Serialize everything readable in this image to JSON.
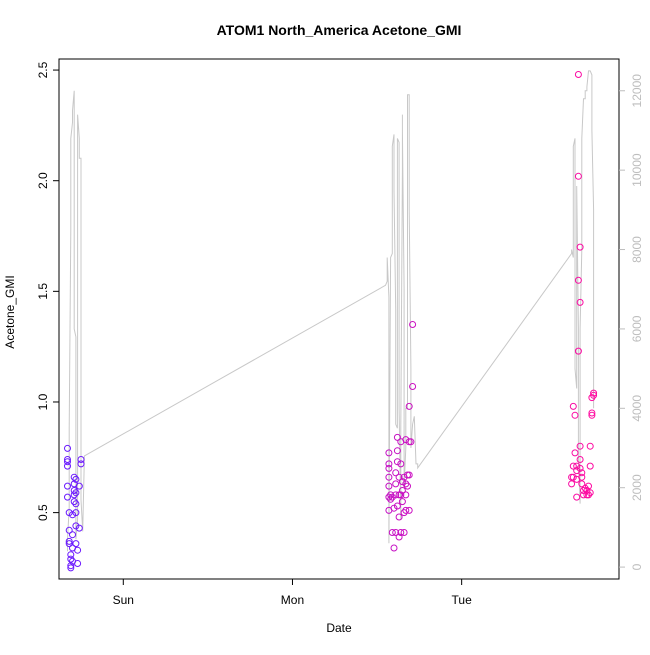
{
  "chart_data": {
    "type": "scatter",
    "title": "ATOM1 North_America Acetone_GMI",
    "xlabel": "Date",
    "ylabel": "Acetone_GMI",
    "ylim": [
      0.2,
      2.55
    ],
    "y2lim": [
      -300,
      12800
    ],
    "y_ticks": [
      "0.5",
      "1.0",
      "1.5",
      "2.0",
      "2.5"
    ],
    "y2_ticks": [
      "0",
      "2000",
      "4000",
      "6000",
      "8000",
      "10000",
      "12000"
    ],
    "x_ticks": [
      "Sun",
      "Mon",
      "Tue"
    ],
    "xlim": [
      -0.38,
      2.93
    ],
    "grid": false,
    "legend": "none",
    "colors": {
      "altitude_line": "#c8c8c8",
      "points_start": "#6a1aff",
      "points_end": "#ff0aa0",
      "right_axis": "#bdbdbd",
      "axes": "#000000"
    },
    "series": [
      {
        "role": "acetone_points",
        "points": [
          [
            -0.33,
            0.79
          ],
          [
            -0.33,
            0.74
          ],
          [
            -0.33,
            0.73
          ],
          [
            -0.33,
            0.71
          ],
          [
            -0.33,
            0.62
          ],
          [
            -0.33,
            0.57
          ],
          [
            -0.32,
            0.5
          ],
          [
            -0.32,
            0.42
          ],
          [
            -0.32,
            0.37
          ],
          [
            -0.32,
            0.36
          ],
          [
            -0.31,
            0.31
          ],
          [
            -0.31,
            0.29
          ],
          [
            -0.31,
            0.26
          ],
          [
            -0.31,
            0.25
          ],
          [
            -0.3,
            0.49
          ],
          [
            -0.3,
            0.4
          ],
          [
            -0.3,
            0.34
          ],
          [
            -0.3,
            0.28
          ],
          [
            -0.29,
            0.66
          ],
          [
            -0.29,
            0.63
          ],
          [
            -0.29,
            0.6
          ],
          [
            -0.29,
            0.58
          ],
          [
            -0.29,
            0.55
          ],
          [
            -0.28,
            0.65
          ],
          [
            -0.28,
            0.59
          ],
          [
            -0.28,
            0.54
          ],
          [
            -0.28,
            0.5
          ],
          [
            -0.28,
            0.44
          ],
          [
            -0.28,
            0.36
          ],
          [
            -0.27,
            0.27
          ],
          [
            -0.27,
            0.33
          ],
          [
            -0.26,
            0.43
          ],
          [
            -0.26,
            0.62
          ],
          [
            -0.25,
            0.74
          ],
          [
            -0.25,
            0.72
          ],
          [
            1.57,
            0.77
          ],
          [
            1.57,
            0.72
          ],
          [
            1.57,
            0.7
          ],
          [
            1.57,
            0.66
          ],
          [
            1.57,
            0.62
          ],
          [
            1.57,
            0.57
          ],
          [
            1.57,
            0.51
          ],
          [
            1.58,
            0.56
          ],
          [
            1.58,
            0.58
          ],
          [
            1.59,
            0.57
          ],
          [
            1.59,
            0.41
          ],
          [
            1.6,
            0.34
          ],
          [
            1.6,
            0.52
          ],
          [
            1.61,
            0.68
          ],
          [
            1.61,
            0.63
          ],
          [
            1.61,
            0.58
          ],
          [
            1.61,
            0.41
          ],
          [
            1.62,
            0.84
          ],
          [
            1.62,
            0.78
          ],
          [
            1.62,
            0.73
          ],
          [
            1.62,
            0.53
          ],
          [
            1.63,
            0.39
          ],
          [
            1.63,
            0.48
          ],
          [
            1.63,
            0.58
          ],
          [
            1.63,
            0.66
          ],
          [
            1.64,
            0.82
          ],
          [
            1.64,
            0.72
          ],
          [
            1.64,
            0.58
          ],
          [
            1.64,
            0.41
          ],
          [
            1.65,
            0.6
          ],
          [
            1.65,
            0.64
          ],
          [
            1.65,
            0.55
          ],
          [
            1.66,
            0.5
          ],
          [
            1.66,
            0.41
          ],
          [
            1.66,
            0.66
          ],
          [
            1.67,
            0.83
          ],
          [
            1.67,
            0.63
          ],
          [
            1.67,
            0.58
          ],
          [
            1.67,
            0.51
          ],
          [
            1.68,
            0.67
          ],
          [
            1.68,
            0.62
          ],
          [
            1.69,
            0.82
          ],
          [
            1.69,
            0.51
          ],
          [
            1.69,
            0.67
          ],
          [
            1.69,
            0.98
          ],
          [
            1.7,
            0.82
          ],
          [
            1.71,
            1.07
          ],
          [
            1.71,
            1.35
          ],
          [
            2.65,
            0.66
          ],
          [
            2.65,
            0.63
          ],
          [
            2.66,
            0.98
          ],
          [
            2.66,
            0.66
          ],
          [
            2.66,
            0.71
          ],
          [
            2.67,
            0.94
          ],
          [
            2.67,
            0.77
          ],
          [
            2.68,
            0.71
          ],
          [
            2.68,
            0.69
          ],
          [
            2.68,
            0.65
          ],
          [
            2.68,
            0.57
          ],
          [
            2.69,
            2.48
          ],
          [
            2.69,
            2.02
          ],
          [
            2.69,
            1.55
          ],
          [
            2.69,
            1.23
          ],
          [
            2.7,
            1.7
          ],
          [
            2.7,
            1.45
          ],
          [
            2.7,
            0.8
          ],
          [
            2.7,
            0.74
          ],
          [
            2.7,
            0.7
          ],
          [
            2.71,
            0.68
          ],
          [
            2.71,
            0.66
          ],
          [
            2.71,
            0.63
          ],
          [
            2.72,
            0.6
          ],
          [
            2.72,
            0.58
          ],
          [
            2.73,
            0.61
          ],
          [
            2.74,
            0.6
          ],
          [
            2.74,
            0.58
          ],
          [
            2.75,
            0.62
          ],
          [
            2.75,
            0.58
          ],
          [
            2.76,
            0.59
          ],
          [
            2.76,
            0.8
          ],
          [
            2.76,
            0.71
          ],
          [
            2.77,
            0.95
          ],
          [
            2.77,
            0.94
          ],
          [
            2.77,
            1.02
          ],
          [
            2.78,
            1.03
          ],
          [
            2.78,
            1.04
          ]
        ]
      },
      {
        "role": "altitude_line_right_axis",
        "points": [
          [
            -0.33,
            400
          ],
          [
            -0.33,
            700
          ],
          [
            -0.32,
            1500
          ],
          [
            -0.32,
            3500
          ],
          [
            -0.31,
            8500
          ],
          [
            -0.31,
            10800
          ],
          [
            -0.3,
            11200
          ],
          [
            -0.3,
            11500
          ],
          [
            -0.29,
            12000
          ],
          [
            -0.29,
            11000
          ],
          [
            -0.29,
            9000
          ],
          [
            -0.29,
            6000
          ],
          [
            -0.28,
            5800
          ],
          [
            -0.28,
            2000
          ],
          [
            -0.28,
            700
          ],
          [
            -0.27,
            1200
          ],
          [
            -0.27,
            6000
          ],
          [
            -0.27,
            10800
          ],
          [
            -0.27,
            11400
          ],
          [
            -0.26,
            10800
          ],
          [
            -0.26,
            10300
          ],
          [
            -0.25,
            10300
          ],
          [
            -0.25,
            7000
          ],
          [
            -0.25,
            1700
          ],
          [
            -0.24,
            900
          ],
          [
            -0.23,
            2800
          ],
          [
            1.55,
            7100
          ],
          [
            1.56,
            7200
          ],
          [
            1.56,
            7800
          ],
          [
            1.57,
            6800
          ],
          [
            1.57,
            600
          ],
          [
            1.58,
            7800
          ],
          [
            1.58,
            7800
          ],
          [
            1.59,
            7900
          ],
          [
            1.59,
            10600
          ],
          [
            1.6,
            10900
          ],
          [
            1.6,
            10000
          ],
          [
            1.6,
            9500
          ],
          [
            1.61,
            6500
          ],
          [
            1.61,
            4000
          ],
          [
            1.61,
            3600
          ],
          [
            1.62,
            3500
          ],
          [
            1.62,
            8500
          ],
          [
            1.62,
            10800
          ],
          [
            1.63,
            10700
          ],
          [
            1.63,
            9000
          ],
          [
            1.63,
            4000
          ],
          [
            1.64,
            1200
          ],
          [
            1.64,
            3500
          ],
          [
            1.65,
            10000
          ],
          [
            1.65,
            11400
          ],
          [
            1.65,
            11000
          ],
          [
            1.66,
            7000
          ],
          [
            1.66,
            3200
          ],
          [
            1.66,
            2000
          ],
          [
            1.67,
            3000
          ],
          [
            1.67,
            4000
          ],
          [
            1.68,
            4000
          ],
          [
            1.68,
            9000
          ],
          [
            1.68,
            11900
          ],
          [
            1.69,
            11900
          ],
          [
            1.69,
            9000
          ],
          [
            1.7,
            5000
          ],
          [
            1.7,
            3200
          ],
          [
            1.7,
            3000
          ],
          [
            1.71,
            3600
          ],
          [
            1.72,
            3800
          ],
          [
            1.73,
            2600
          ],
          [
            1.74,
            2600
          ],
          [
            1.74,
            2500
          ],
          [
            2.65,
            7900
          ],
          [
            2.65,
            8000
          ],
          [
            2.66,
            7800
          ],
          [
            2.66,
            9300
          ],
          [
            2.66,
            10600
          ],
          [
            2.67,
            10800
          ],
          [
            2.67,
            9800
          ],
          [
            2.67,
            6000
          ],
          [
            2.67,
            5000
          ],
          [
            2.68,
            4500
          ],
          [
            2.68,
            6500
          ],
          [
            2.68,
            9600
          ],
          [
            2.69,
            6000
          ],
          [
            2.69,
            2800
          ],
          [
            2.7,
            1600
          ],
          [
            2.7,
            3300
          ],
          [
            2.7,
            6000
          ],
          [
            2.71,
            8000
          ],
          [
            2.71,
            10800
          ],
          [
            2.72,
            11800
          ],
          [
            2.73,
            11800
          ],
          [
            2.73,
            12000
          ],
          [
            2.74,
            12000
          ],
          [
            2.74,
            12100
          ],
          [
            2.75,
            12500
          ],
          [
            2.76,
            12500
          ],
          [
            2.77,
            12400
          ],
          [
            2.77,
            11000
          ],
          [
            2.78,
            9000
          ],
          [
            2.78,
            4000
          ]
        ]
      }
    ]
  }
}
